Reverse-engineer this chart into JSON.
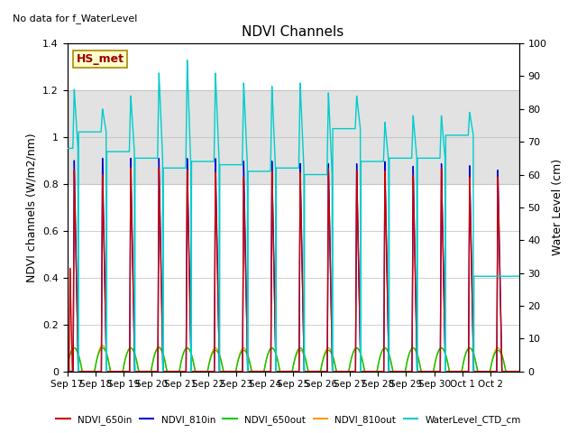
{
  "title": "NDVI Channels",
  "no_data_text": "No data for f_WaterLevel",
  "annotation_text": "HS_met",
  "ylabel_left": "NDVI channels (W/m2/nm)",
  "ylabel_right": "Water Level (cm)",
  "ylim_left": [
    0.0,
    1.4
  ],
  "ylim_right": [
    0,
    100
  ],
  "xtick_labels": [
    "Sep 17",
    "Sep 18",
    "Sep 19",
    "Sep 20",
    "Sep 21",
    "Sep 22",
    "Sep 23",
    "Sep 24",
    "Sep 25",
    "Sep 26",
    "Sep 27",
    "Sep 28",
    "Sep 29",
    "Sep 30",
    "Oct 1",
    "Oct 2"
  ],
  "yticks_left": [
    0.0,
    0.2,
    0.4,
    0.6,
    0.8,
    1.0,
    1.2,
    1.4
  ],
  "yticks_right": [
    0,
    10,
    20,
    30,
    40,
    50,
    60,
    70,
    80,
    90,
    100
  ],
  "gray_band": [
    0.8,
    1.2
  ],
  "background_color": "#ffffff",
  "colors": {
    "ndvi_650in": "#cc0000",
    "ndvi_810in": "#0000cc",
    "ndvi_650out": "#00cc00",
    "ndvi_810out": "#ff9900",
    "water": "#00cccc"
  },
  "peak_centers": [
    0.25,
    1.25,
    2.25,
    3.25,
    4.25,
    5.25,
    6.25,
    7.25,
    8.25,
    9.25,
    10.25,
    11.25,
    12.25,
    13.25,
    14.25,
    15.25
  ],
  "ndvi_650in_peaks": [
    0.86,
    0.84,
    0.87,
    0.87,
    0.86,
    0.85,
    0.83,
    0.86,
    0.85,
    0.87,
    0.86,
    0.86,
    0.84,
    0.87,
    0.83,
    0.83
  ],
  "ndvi_810in_peaks": [
    0.9,
    0.91,
    0.91,
    0.91,
    0.91,
    0.91,
    0.9,
    0.9,
    0.89,
    0.89,
    0.89,
    0.9,
    0.88,
    0.89,
    0.88,
    0.86
  ],
  "ndvi_650out_peaks": [
    0.1,
    0.1,
    0.1,
    0.1,
    0.1,
    0.09,
    0.09,
    0.1,
    0.1,
    0.09,
    0.1,
    0.1,
    0.1,
    0.1,
    0.1,
    0.09
  ],
  "ndvi_810out_peaks": [
    0.1,
    0.11,
    0.1,
    0.105,
    0.1,
    0.1,
    0.1,
    0.1,
    0.09,
    0.1,
    0.1,
    0.1,
    0.1,
    0.1,
    0.1,
    0.1
  ],
  "water_peaks_cm": [
    86,
    80,
    84,
    91,
    95,
    91,
    88,
    87,
    88,
    85,
    84,
    76,
    78,
    78,
    79,
    29
  ],
  "water_baseline_cm": [
    68,
    73,
    67,
    65,
    62,
    64,
    63,
    61,
    62,
    60,
    74,
    64,
    65,
    65,
    72,
    29
  ],
  "special_650in_first": 0.44
}
